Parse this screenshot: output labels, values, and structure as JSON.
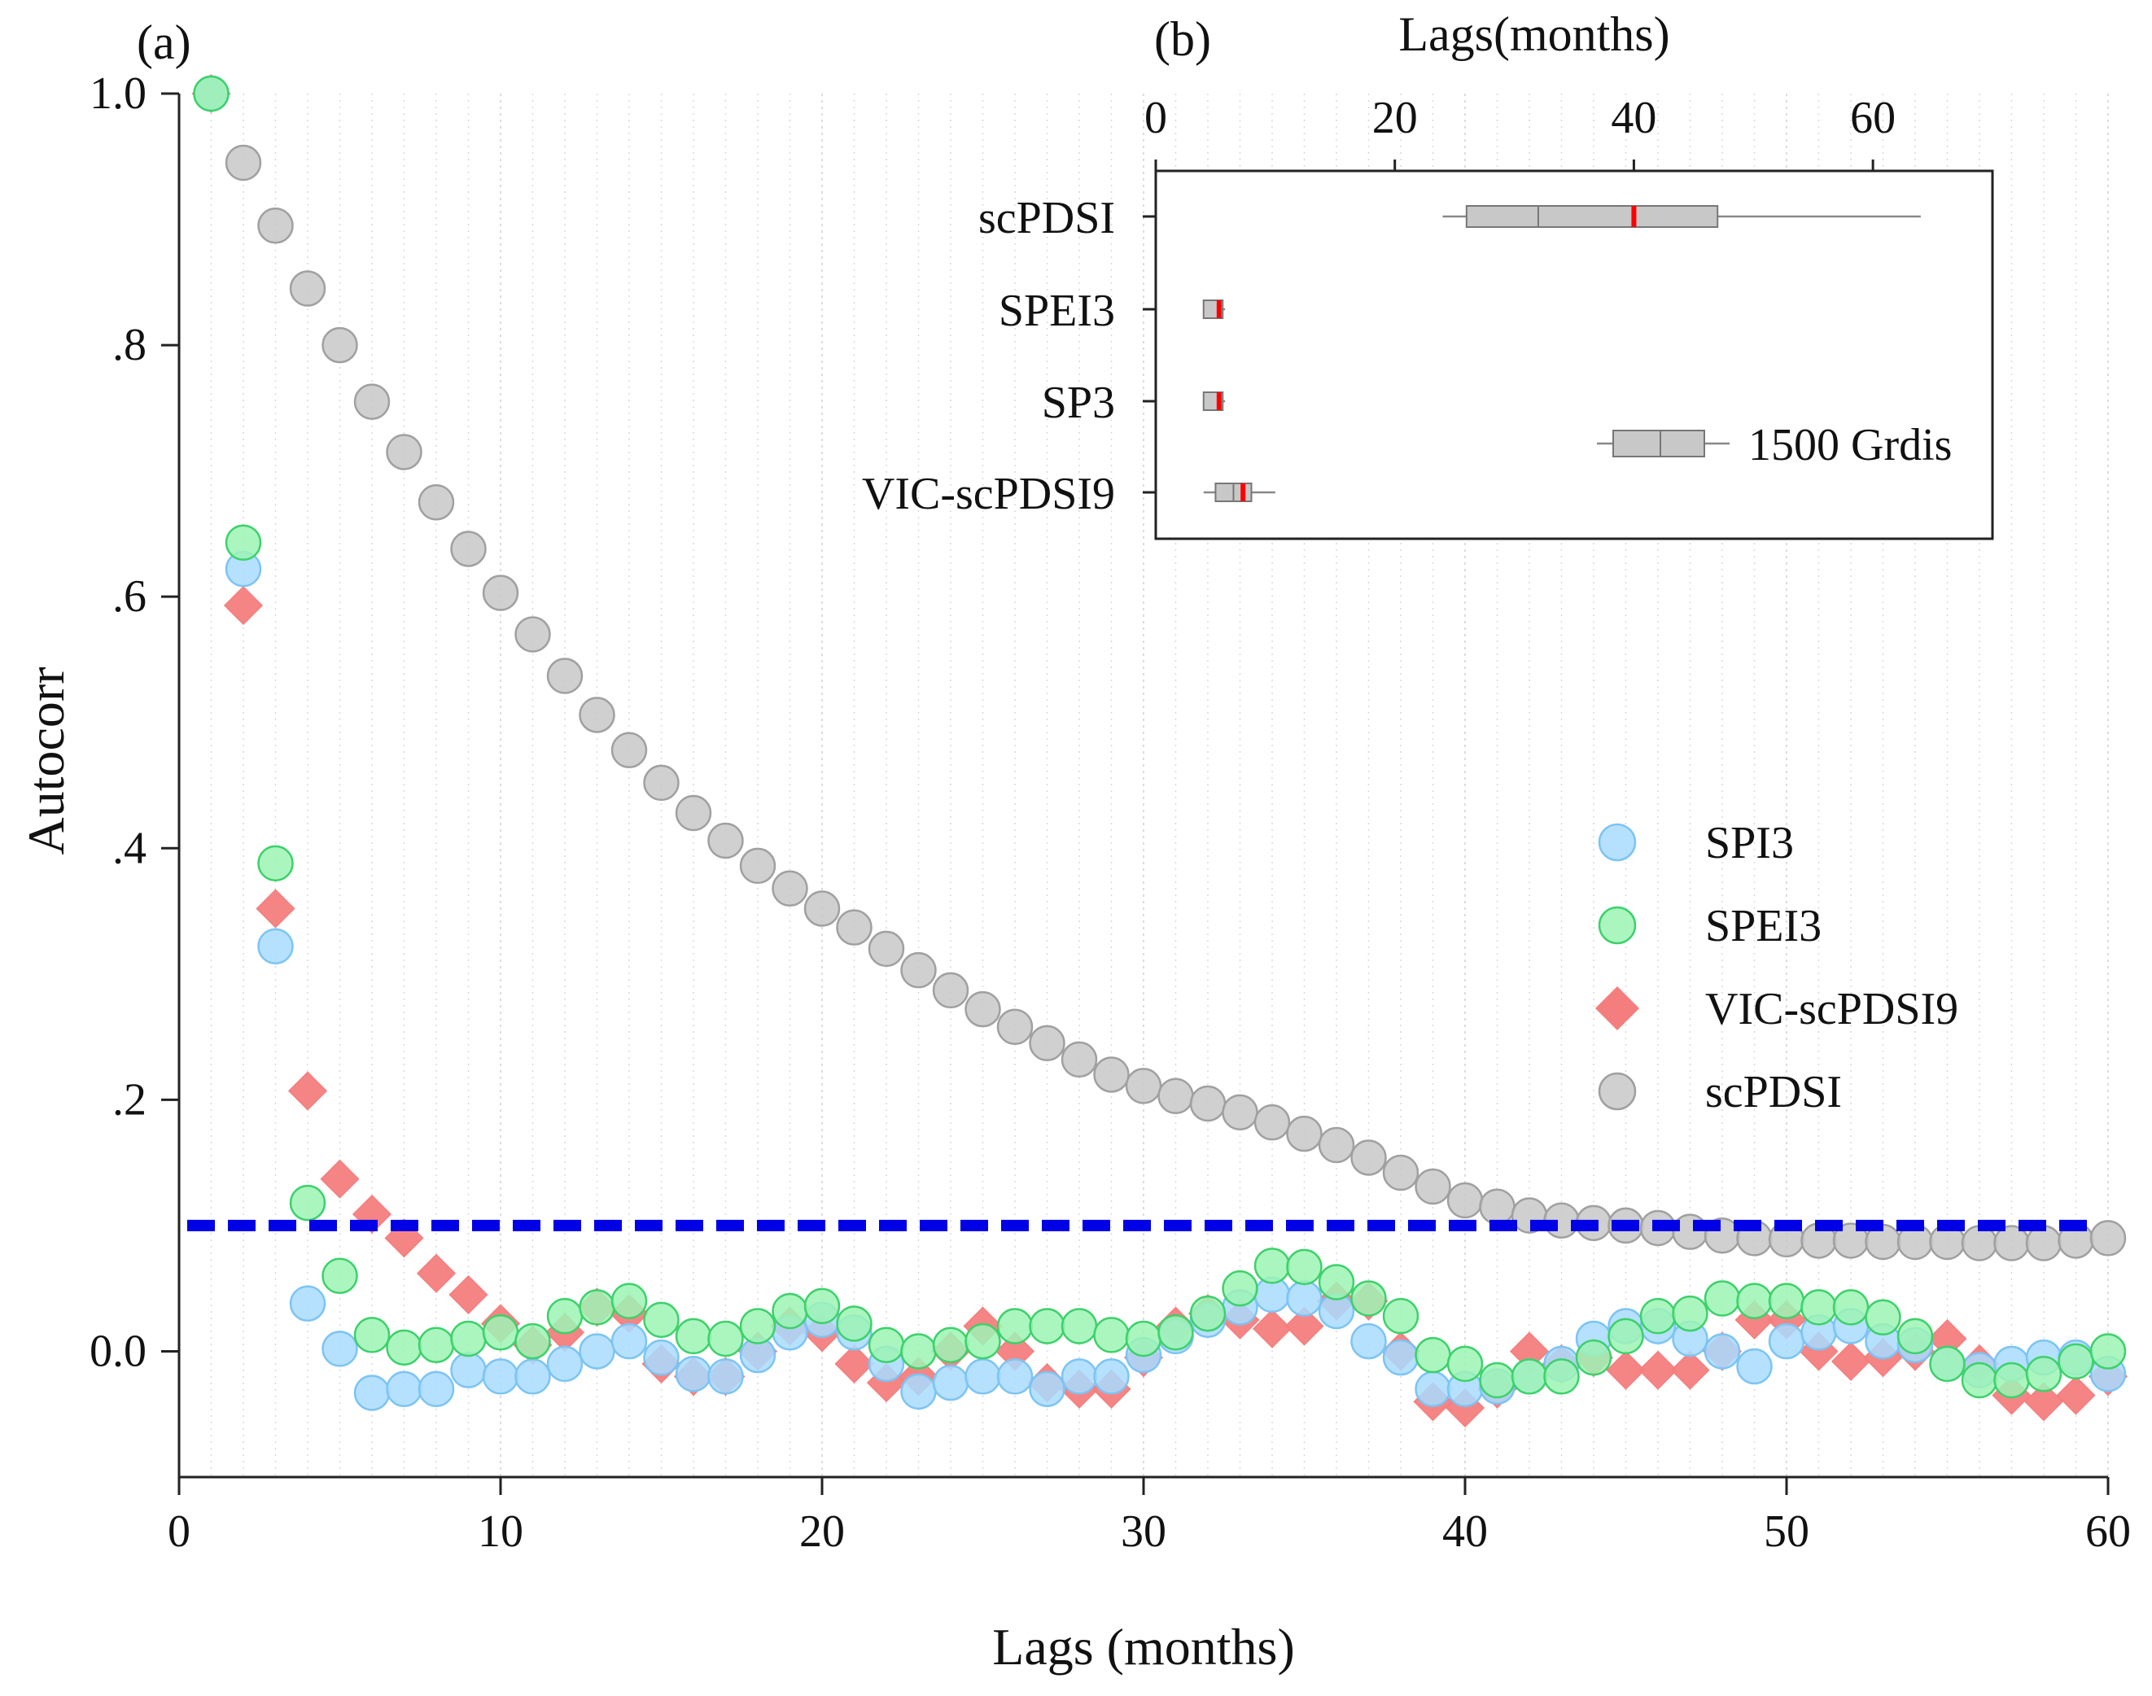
{
  "panel_a": {
    "label": "(a)",
    "chart_data": {
      "type": "scatter",
      "title": "",
      "xlabel": "Lags (months)",
      "ylabel": "Autocorr",
      "xlim": [
        0,
        60
      ],
      "ylim": [
        -0.1,
        1.0
      ],
      "xticks": [
        0,
        10,
        20,
        30,
        40,
        50,
        60
      ],
      "xtick_labels": [
        "0",
        "10",
        "20",
        "30",
        "40",
        "50",
        "60"
      ],
      "yticks": [
        0.0,
        0.2,
        0.4,
        0.6,
        0.8,
        1.0
      ],
      "ytick_labels": [
        "0.0",
        ".2",
        ".4",
        ".6",
        ".8",
        "1.0"
      ],
      "threshold": {
        "value": 0.1,
        "color": "#0000e6",
        "style": "dashed"
      },
      "legend_position": "right",
      "x": [
        1,
        2,
        3,
        4,
        5,
        6,
        7,
        8,
        9,
        10,
        11,
        12,
        13,
        14,
        15,
        16,
        17,
        18,
        19,
        20,
        21,
        22,
        23,
        24,
        25,
        26,
        27,
        28,
        29,
        30,
        31,
        32,
        33,
        34,
        35,
        36,
        37,
        38,
        39,
        40,
        41,
        42,
        43,
        44,
        45,
        46,
        47,
        48,
        49,
        50,
        51,
        52,
        53,
        54,
        55,
        56,
        57,
        58,
        59,
        60
      ],
      "series": [
        {
          "name": "scPDSI",
          "marker": "circle",
          "color": "#c8c8c8",
          "stroke": "#a0a0a0",
          "values": [
            1.0,
            0.945,
            0.895,
            0.845,
            0.8,
            0.755,
            0.715,
            0.675,
            0.638,
            0.603,
            0.57,
            0.537,
            0.506,
            0.478,
            0.452,
            0.428,
            0.406,
            0.386,
            0.368,
            0.352,
            0.337,
            0.32,
            0.303,
            0.287,
            0.272,
            0.258,
            0.245,
            0.232,
            0.22,
            0.211,
            0.203,
            0.197,
            0.19,
            0.182,
            0.173,
            0.164,
            0.154,
            0.142,
            0.131,
            0.12,
            0.115,
            0.108,
            0.104,
            0.102,
            0.1,
            0.098,
            0.095,
            0.092,
            0.09,
            0.089,
            0.088,
            0.088,
            0.087,
            0.087,
            0.087,
            0.086,
            0.086,
            0.086,
            0.088,
            0.09
          ]
        },
        {
          "name": "VIC-scPDSI9",
          "marker": "diamond",
          "color": "#f47e7e",
          "stroke": "#f47e7e",
          "values": [
            1.0,
            0.593,
            0.352,
            0.207,
            0.137,
            0.109,
            0.09,
            0.062,
            0.045,
            0.022,
            0.005,
            0.015,
            0.035,
            0.03,
            -0.01,
            -0.02,
            -0.02,
            0.0,
            0.02,
            0.015,
            -0.01,
            -0.025,
            -0.02,
            0.0,
            0.02,
            0.0,
            -0.025,
            -0.03,
            -0.03,
            -0.005,
            0.02,
            0.03,
            0.025,
            0.018,
            0.02,
            0.04,
            0.04,
            0.0,
            -0.04,
            -0.045,
            -0.03,
            0.0,
            -0.01,
            -0.005,
            -0.015,
            -0.015,
            -0.015,
            0.0,
            0.025,
            0.025,
            0.0,
            -0.008,
            -0.005,
            0.0,
            0.01,
            -0.01,
            -0.035,
            -0.04,
            -0.035,
            -0.02
          ]
        },
        {
          "name": "SPI3",
          "marker": "circle",
          "color": "#a8dcff",
          "stroke": "#7cc4f4",
          "values": [
            1.0,
            0.622,
            0.322,
            0.038,
            0.002,
            -0.033,
            -0.03,
            -0.03,
            -0.015,
            -0.02,
            -0.02,
            -0.01,
            0.0,
            0.008,
            -0.005,
            -0.018,
            -0.02,
            -0.003,
            0.015,
            0.025,
            0.015,
            -0.01,
            -0.032,
            -0.025,
            -0.02,
            -0.02,
            -0.03,
            -0.02,
            -0.02,
            -0.003,
            0.012,
            0.025,
            0.035,
            0.045,
            0.042,
            0.032,
            0.008,
            -0.005,
            -0.03,
            -0.03,
            -0.028,
            -0.02,
            -0.01,
            0.01,
            0.02,
            0.02,
            0.01,
            0.0,
            -0.012,
            0.008,
            0.015,
            0.02,
            0.008,
            0.005,
            -0.01,
            -0.015,
            -0.01,
            -0.005,
            -0.005,
            -0.018
          ]
        },
        {
          "name": "SPEI3",
          "marker": "circle",
          "color": "#9cf3b4",
          "stroke": "#3dd16b",
          "values": [
            1.0,
            0.643,
            0.388,
            0.118,
            0.06,
            0.013,
            0.003,
            0.005,
            0.01,
            0.015,
            0.008,
            0.028,
            0.035,
            0.04,
            0.025,
            0.012,
            0.01,
            0.02,
            0.032,
            0.036,
            0.022,
            0.005,
            0.0,
            0.005,
            0.008,
            0.02,
            0.02,
            0.02,
            0.013,
            0.01,
            0.015,
            0.03,
            0.05,
            0.068,
            0.067,
            0.055,
            0.042,
            0.028,
            -0.003,
            -0.01,
            -0.023,
            -0.02,
            -0.02,
            -0.005,
            0.012,
            0.028,
            0.03,
            0.042,
            0.04,
            0.04,
            0.035,
            0.035,
            0.027,
            0.012,
            -0.01,
            -0.023,
            -0.023,
            -0.018,
            -0.008,
            0.0
          ]
        }
      ]
    },
    "legend": [
      {
        "name": "SPI3"
      },
      {
        "name": "SPEI3"
      },
      {
        "name": "VIC-scPDSI9"
      },
      {
        "name": "scPDSI"
      }
    ]
  },
  "panel_b": {
    "label": "(b)",
    "chart_data": {
      "type": "box",
      "orientation": "horizontal",
      "xlabel": "Lags(months)",
      "xlim": [
        0,
        70
      ],
      "xticks": [
        0,
        20,
        40,
        60
      ],
      "xtick_labels": [
        "0",
        "20",
        "40",
        "60"
      ],
      "median_color": "#ff0000",
      "box_color": "#c8c8c8",
      "categories": [
        "scPDSI",
        "SPEI3",
        "SP3",
        "VIC-scPDSI9"
      ],
      "boxes": [
        {
          "name": "scPDSI",
          "whisker_low": 24,
          "q1": 26,
          "median": 40,
          "q3": 47,
          "whisker_high": 64,
          "inner_line": 32
        },
        {
          "name": "SPEI3",
          "whisker_low": 4,
          "q1": 4,
          "median": 5.3,
          "q3": 5.6,
          "whisker_high": 5.8,
          "inner_line": null
        },
        {
          "name": "SP3",
          "whisker_low": 4,
          "q1": 4,
          "median": 5.3,
          "q3": 5.6,
          "whisker_high": 5.8,
          "inner_line": null
        },
        {
          "name": "VIC-scPDSI9",
          "whisker_low": 4,
          "q1": 5,
          "median": 7.3,
          "q3": 8,
          "whisker_high": 10,
          "inner_line": 6.5
        }
      ],
      "legend_label": "1500 Grdis"
    }
  }
}
